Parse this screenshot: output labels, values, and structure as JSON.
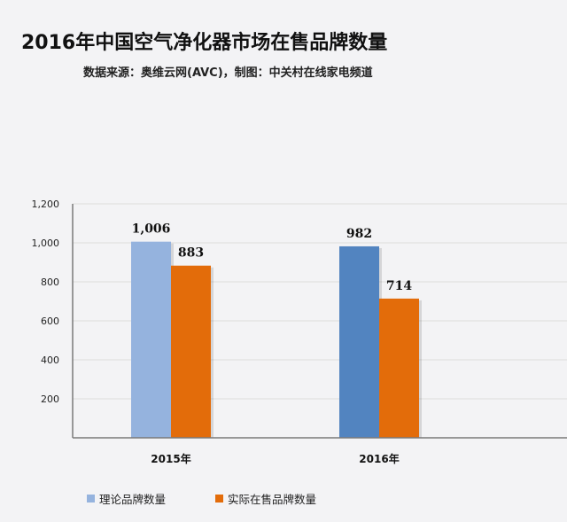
{
  "title": "2016年中国空气净化器市场在售品牌数量",
  "subtitle": "数据来源：奥维云网(AVC)，制图：中关村在线家电频道",
  "chart_data": {
    "type": "bar",
    "categories": [
      "2015年",
      "2016年"
    ],
    "series": [
      {
        "name": "理论品牌数量",
        "values": [
          1006,
          982
        ],
        "colors": [
          "#95b3de",
          "#5284c0"
        ]
      },
      {
        "name": "实际在售品牌数量",
        "values": [
          883,
          714
        ],
        "colors": [
          "#e36c0a",
          "#e36c0a"
        ]
      }
    ],
    "data_labels": [
      [
        "1,006",
        "982"
      ],
      [
        "883",
        "714"
      ]
    ],
    "y_ticks": [
      "200",
      "400",
      "600",
      "800",
      "1,000",
      "1,200"
    ],
    "y_tick_values": [
      200,
      400,
      600,
      800,
      1000,
      1200
    ],
    "ylim": [
      0,
      1200
    ],
    "grid": true,
    "legend_position": "bottom-left"
  }
}
